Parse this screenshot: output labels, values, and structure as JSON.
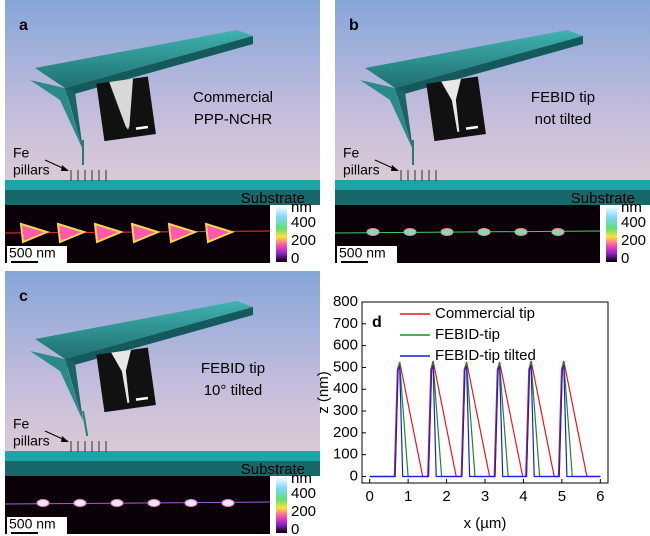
{
  "panels": [
    {
      "label": "a",
      "caption": [
        "Commercial",
        "PPP-NCHR"
      ],
      "pillars": [
        "Fe",
        "pillars"
      ],
      "substrate": "Substrate",
      "unit": "nm",
      "colorbar_ticks": [
        400,
        200,
        0
      ],
      "scale_bar": "500 nm"
    },
    {
      "label": "b",
      "caption": [
        "FEBID tip",
        "not tilted"
      ],
      "pillars": [
        "Fe",
        "pillars"
      ],
      "substrate": "Substrate",
      "unit": "nm",
      "colorbar_ticks": [
        400,
        200,
        0
      ],
      "scale_bar": "500 nm"
    },
    {
      "label": "c",
      "caption": [
        "FEBID tip",
        "10° tilted"
      ],
      "pillars": [
        "Fe",
        "pillars"
      ],
      "substrate": "Substrate",
      "unit": "nm",
      "colorbar_ticks": [
        400,
        200,
        0
      ],
      "scale_bar": "500 nm"
    }
  ],
  "chart_data": {
    "type": "line",
    "panel_label": "d",
    "x_label": "x (µm)",
    "y_label": "z (nm)",
    "xlim": [
      -0.2,
      6.2
    ],
    "ylim": [
      -30,
      800
    ],
    "xticks": [
      0,
      1,
      2,
      3,
      4,
      5,
      6
    ],
    "yticks": [
      0,
      100,
      200,
      300,
      400,
      500,
      600,
      700,
      800
    ],
    "series": [
      {
        "name": "Commercial tip",
        "color": "#e8191c",
        "x": [
          0,
          0.64,
          0.72,
          0.78,
          1.38,
          1.51,
          1.59,
          1.65,
          2.25,
          2.38,
          2.46,
          2.52,
          3.12,
          3.24,
          3.32,
          3.38,
          3.98,
          4.06,
          4.14,
          4.2,
          4.8,
          4.91,
          4.99,
          5.05,
          5.65,
          6
        ],
        "values": [
          0,
          0,
          490,
          525,
          0,
          0,
          490,
          530,
          0,
          0,
          490,
          525,
          0,
          0,
          490,
          525,
          0,
          0,
          490,
          530,
          0,
          0,
          490,
          530,
          0,
          0
        ]
      },
      {
        "name": "FEBID-tip",
        "color": "#1f8a1f",
        "x": [
          0,
          0.66,
          0.74,
          0.78,
          1.0,
          1.53,
          1.61,
          1.65,
          1.87,
          2.4,
          2.48,
          2.52,
          2.74,
          3.26,
          3.34,
          3.38,
          3.6,
          4.08,
          4.16,
          4.2,
          4.42,
          4.93,
          5.01,
          5.05,
          5.27,
          6
        ],
        "values": [
          0,
          0,
          500,
          515,
          0,
          0,
          500,
          520,
          0,
          0,
          500,
          515,
          0,
          0,
          500,
          515,
          0,
          0,
          500,
          520,
          0,
          0,
          500,
          520,
          0,
          0
        ]
      },
      {
        "name": "FEBID-tip tilted",
        "color": "#1c1cdc",
        "x": [
          0,
          0.66,
          0.74,
          0.78,
          0.86,
          1.53,
          1.61,
          1.65,
          1.73,
          2.4,
          2.48,
          2.52,
          2.6,
          3.26,
          3.34,
          3.38,
          3.46,
          4.08,
          4.16,
          4.2,
          4.28,
          4.93,
          5.01,
          5.05,
          5.13,
          6
        ],
        "values": [
          0,
          0,
          490,
          505,
          0,
          0,
          490,
          510,
          0,
          0,
          490,
          505,
          0,
          0,
          490,
          505,
          0,
          0,
          490,
          510,
          0,
          0,
          490,
          510,
          0,
          0
        ]
      }
    ]
  }
}
